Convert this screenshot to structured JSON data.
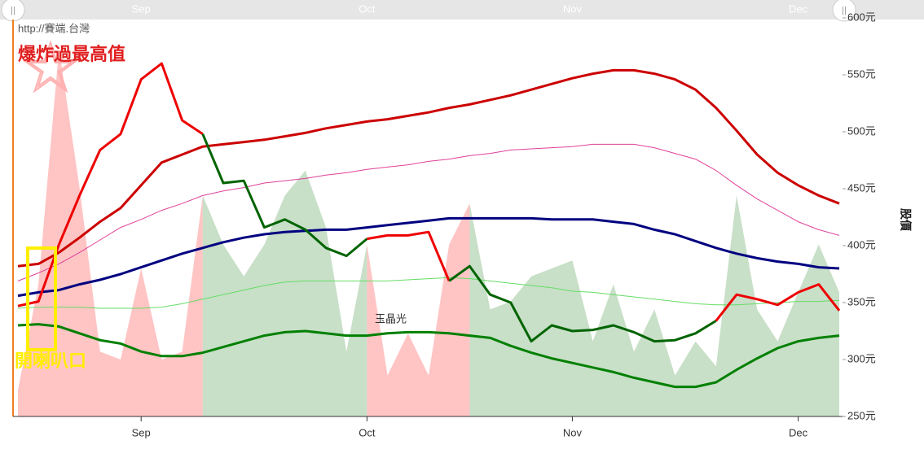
{
  "chart_data": {
    "type": "line",
    "watermark": "http://賽端.台灣",
    "annotations": [
      "爆炸過最高值",
      "開喇叭口",
      "玉晶光"
    ],
    "y_label": "股價",
    "yaxis_position": "right",
    "ylim": [
      250,
      600
    ],
    "yticks": [
      {
        "value": 250,
        "label": "250元"
      },
      {
        "value": 300,
        "label": "300元"
      },
      {
        "value": 350,
        "label": "350元"
      },
      {
        "value": 400,
        "label": "400元"
      },
      {
        "value": 450,
        "label": "450元"
      },
      {
        "value": 500,
        "label": "500元"
      },
      {
        "value": 550,
        "label": "550元"
      },
      {
        "value": 600,
        "label": "600元"
      }
    ],
    "categories": [
      null,
      null,
      null,
      null,
      null,
      null,
      "Sep",
      null,
      null,
      null,
      null,
      null,
      null,
      null,
      null,
      null,
      null,
      "Oct",
      null,
      null,
      null,
      null,
      null,
      null,
      null,
      null,
      null,
      "Nov",
      null,
      null,
      null,
      null,
      null,
      null,
      null,
      null,
      null,
      null,
      "Dec",
      null,
      null
    ],
    "series": [
      {
        "type": "area",
        "values": [
          273,
          366,
          573,
          451,
          307,
          300,
          380,
          300,
          307,
          444,
          401,
          373,
          401,
          444,
          466,
          416,
          307,
          401,
          286,
          323,
          286,
          401,
          437,
          344,
          351,
          373,
          380,
          387,
          316,
          366,
          307,
          344,
          286,
          316,
          294,
          444,
          344,
          316,
          359,
          401,
          359
        ],
        "point_colors": [
          "#ffc4c4",
          "#ffc4c4",
          "#ffc4c4",
          "#ffc4c4",
          "#ffc4c4",
          "#ffc4c4",
          "#ffc4c4",
          "#ffc4c4",
          "#ffc4c4",
          "#c8dfc8",
          "#c8dfc8",
          "#c8dfc8",
          "#c8dfc8",
          "#c8dfc8",
          "#c8dfc8",
          "#c8dfc8",
          "#c8dfc8",
          "#ffc4c4",
          "#ffc4c4",
          "#ffc4c4",
          "#ffc4c4",
          "#ffc4c4",
          "#c8dfc8",
          "#c8dfc8",
          "#c8dfc8",
          "#c8dfc8",
          "#c8dfc8",
          "#c8dfc8",
          "#c8dfc8",
          "#c8dfc8",
          "#c8dfc8",
          "#c8dfc8",
          "#c8dfc8",
          "#c8dfc8",
          "#c8dfc8",
          "#c8dfc8",
          "#c8dfc8",
          "#c8dfc8",
          "#c8dfc8",
          "#c8dfc8",
          "#c8dfc8"
        ]
      },
      {
        "color": "#cc0000",
        "width": 3,
        "values": [
          382,
          384,
          394,
          407,
          421,
          433,
          453,
          473,
          480,
          487,
          489,
          491,
          493,
          496,
          499,
          503,
          506,
          509,
          511,
          514,
          517,
          521,
          524,
          528,
          532,
          537,
          542,
          547,
          551,
          554,
          554,
          551,
          546,
          537,
          521,
          501,
          480,
          464,
          453,
          444,
          437
        ]
      },
      {
        "color": "#e0409a",
        "width": 1,
        "values": [
          369,
          376,
          384,
          394,
          405,
          416,
          423,
          431,
          437,
          444,
          448,
          451,
          455,
          457,
          459,
          462,
          464,
          467,
          469,
          471,
          474,
          476,
          479,
          481,
          484,
          485,
          486,
          487,
          489,
          489,
          489,
          486,
          481,
          476,
          466,
          453,
          441,
          431,
          421,
          414,
          409
        ]
      },
      {
        "color": "#000080",
        "width": 3,
        "values": [
          356,
          359,
          361,
          366,
          370,
          375,
          381,
          387,
          393,
          398,
          403,
          407,
          410,
          412,
          413,
          414,
          414,
          416,
          418,
          420,
          422,
          424,
          424,
          424,
          424,
          424,
          423,
          423,
          423,
          421,
          419,
          414,
          410,
          404,
          398,
          393,
          389,
          386,
          384,
          381,
          380
        ]
      },
      {
        "color": "#66dd66",
        "width": 1,
        "values": [
          345,
          346,
          346,
          346,
          345,
          345,
          345,
          346,
          349,
          353,
          357,
          361,
          365,
          368,
          369,
          369,
          369,
          369,
          369,
          370,
          371,
          372,
          371,
          369,
          367,
          365,
          363,
          360,
          359,
          357,
          355,
          353,
          351,
          349,
          348,
          348,
          349,
          350,
          351,
          351,
          352
        ]
      },
      {
        "color": "#008000",
        "width": 3,
        "values": [
          330,
          331,
          329,
          323,
          317,
          314,
          307,
          303,
          303,
          306,
          311,
          316,
          321,
          324,
          325,
          323,
          321,
          321,
          323,
          324,
          324,
          323,
          321,
          319,
          312,
          306,
          301,
          297,
          293,
          289,
          284,
          280,
          276,
          276,
          280,
          291,
          301,
          310,
          316,
          319,
          321
        ]
      },
      {
        "width": 3,
        "values": [
          347,
          351,
          401,
          444,
          484,
          498,
          546,
          560,
          510,
          498,
          455,
          457,
          416,
          423,
          414,
          398,
          391,
          406,
          409,
          409,
          412,
          369,
          382,
          357,
          350,
          316,
          330,
          325,
          326,
          330,
          324,
          316,
          317,
          323,
          334,
          357,
          353,
          348,
          359,
          366,
          343
        ],
        "point_colors": [
          "#ee0000",
          "#ee0000",
          "#ee0000",
          "#ee0000",
          "#ee0000",
          "#ee0000",
          "#ee0000",
          "#ee0000",
          "#ee0000",
          "#006400",
          "#006400",
          "#006400",
          "#006400",
          "#006400",
          "#006400",
          "#006400",
          "#006400",
          "#ee0000",
          "#ee0000",
          "#ee0000",
          "#ee0000",
          "#006400",
          "#006400",
          "#006400",
          "#006400",
          "#006400",
          "#006400",
          "#006400",
          "#006400",
          "#006400",
          "#006400",
          "#006400",
          "#006400",
          "#006400",
          "#ee0000",
          "#ee0000",
          "#ee0000",
          "#ee0000",
          "#ee0000",
          "#ee0000",
          "#006400"
        ]
      }
    ]
  }
}
